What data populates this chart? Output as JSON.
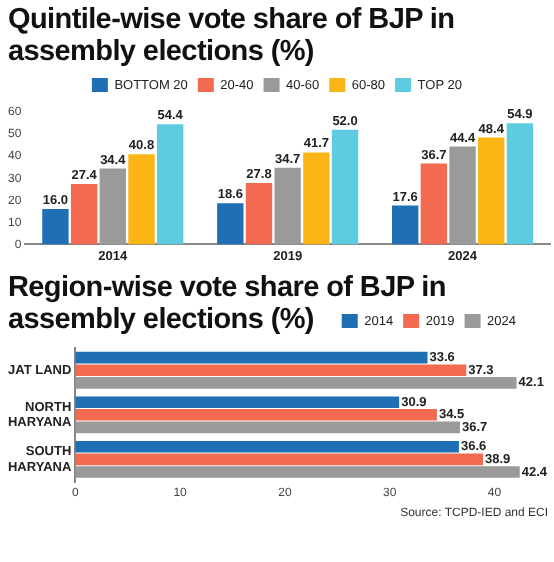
{
  "chart_data": [
    {
      "type": "bar",
      "title": "Quintile-wise vote share of BJP in assembly elections (%)",
      "categories": [
        "2014",
        "2019",
        "2024"
      ],
      "series": [
        {
          "name": "BOTTOM 20",
          "color": "#1f6fb5",
          "values": [
            16.0,
            18.6,
            17.6
          ],
          "value_labels": [
            "16.0",
            "18.6",
            "17.6"
          ]
        },
        {
          "name": "20-40",
          "color": "#f26a4f",
          "values": [
            27.4,
            27.8,
            36.7
          ],
          "value_labels": [
            "27.4",
            "27.8",
            "36.7"
          ]
        },
        {
          "name": "40-60",
          "color": "#9a9a9a",
          "values": [
            34.4,
            34.7,
            44.4
          ],
          "value_labels": [
            "34.4",
            "34.7",
            "44.4"
          ]
        },
        {
          "name": "60-80",
          "color": "#fbb615",
          "values": [
            40.8,
            41.7,
            48.4
          ],
          "value_labels": [
            "40.8",
            "41.7",
            "48.4"
          ]
        },
        {
          "name": "TOP 20",
          "color": "#5fcbe0",
          "values": [
            54.4,
            52.0,
            54.9
          ],
          "value_labels": [
            "54.4",
            "52.0",
            "54.9"
          ]
        }
      ],
      "ylim": [
        0,
        60
      ],
      "yticks": [
        0,
        10,
        20,
        30,
        40,
        50,
        60
      ],
      "legend": "top"
    },
    {
      "type": "bar",
      "orientation": "horizontal",
      "title": "Region-wise vote share of BJP in assembly elections (%)",
      "categories": [
        "JAT LAND",
        "NORTH HARYANA",
        "SOUTH HARYANA"
      ],
      "series": [
        {
          "name": "2014",
          "color": "#1f6fb5",
          "values": [
            33.6,
            30.9,
            36.6
          ]
        },
        {
          "name": "2019",
          "color": "#f26a4f",
          "values": [
            37.3,
            34.5,
            38.9
          ]
        },
        {
          "name": "2024",
          "color": "#9a9a9a",
          "values": [
            42.1,
            36.7,
            42.4
          ]
        }
      ],
      "xlim": [
        0,
        43
      ],
      "xticks": [
        0,
        10,
        20,
        30,
        40
      ],
      "legend": "top right",
      "data_labels": true,
      "annotations": [
        "Source: TCPD-IED and ECI"
      ]
    }
  ]
}
